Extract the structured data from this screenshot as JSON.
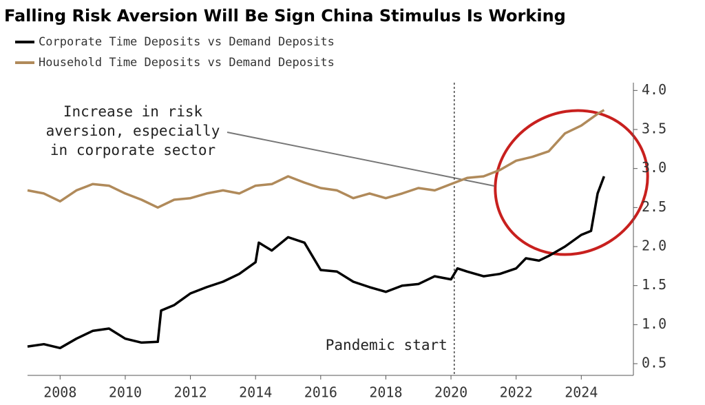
{
  "chart_data": {
    "type": "line",
    "title": "Falling Risk Aversion Will Be Sign China Stimulus Is Working",
    "series": [
      {
        "name": "Corporate Time Deposits vs Demand Deposits",
        "color": "#000000",
        "x": [
          2007,
          2007.5,
          2008,
          2008.5,
          2009,
          2009.5,
          2010,
          2010.5,
          2011,
          2011.1,
          2011.5,
          2012,
          2012.5,
          2013,
          2013.5,
          2014,
          2014.1,
          2014.5,
          2015,
          2015.5,
          2016,
          2016.5,
          2017,
          2017.5,
          2018,
          2018.5,
          2019,
          2019.5,
          2020,
          2020.2,
          2020.5,
          2021,
          2021.5,
          2022,
          2022.3,
          2022.7,
          2023,
          2023.5,
          2024,
          2024.3,
          2024.5,
          2024.7
        ],
        "values": [
          0.72,
          0.75,
          0.7,
          0.82,
          0.92,
          0.95,
          0.82,
          0.77,
          0.78,
          1.18,
          1.25,
          1.4,
          1.48,
          1.55,
          1.65,
          1.8,
          2.05,
          1.95,
          2.12,
          2.05,
          1.7,
          1.68,
          1.55,
          1.48,
          1.42,
          1.5,
          1.52,
          1.62,
          1.58,
          1.72,
          1.68,
          1.62,
          1.65,
          1.72,
          1.85,
          1.82,
          1.88,
          2.0,
          2.15,
          2.2,
          2.68,
          2.9
        ]
      },
      {
        "name": "Household Time Deposits vs Demand Deposits",
        "color": "#b08a5a",
        "x": [
          2007,
          2007.5,
          2008,
          2008.5,
          2009,
          2009.5,
          2010,
          2010.5,
          2011,
          2011.5,
          2012,
          2012.5,
          2013,
          2013.5,
          2014,
          2014.5,
          2015,
          2015.5,
          2016,
          2016.5,
          2017,
          2017.5,
          2018,
          2018.5,
          2019,
          2019.5,
          2020,
          2020.5,
          2021,
          2021.5,
          2022,
          2022.5,
          2023,
          2023.5,
          2024,
          2024.5,
          2024.7
        ],
        "values": [
          2.72,
          2.68,
          2.58,
          2.72,
          2.8,
          2.78,
          2.68,
          2.6,
          2.5,
          2.6,
          2.62,
          2.68,
          2.72,
          2.68,
          2.78,
          2.8,
          2.9,
          2.82,
          2.75,
          2.72,
          2.62,
          2.68,
          2.62,
          2.68,
          2.75,
          2.72,
          2.8,
          2.88,
          2.9,
          2.98,
          3.1,
          3.15,
          3.22,
          3.45,
          3.55,
          3.7,
          3.75
        ]
      }
    ],
    "xlim": [
      2007,
      2025.6
    ],
    "xticks": [
      2008,
      2010,
      2012,
      2014,
      2016,
      2018,
      2020,
      2022,
      2024
    ],
    "ylim": [
      0.35,
      4.1
    ],
    "yticks": [
      {
        "value": 0.5,
        "label": "0.5"
      },
      {
        "value": 1.0,
        "label": "1.0"
      },
      {
        "value": 1.5,
        "label": "1.5"
      },
      {
        "value": 2.0,
        "label": "2.0"
      },
      {
        "value": 2.5,
        "label": "2.5"
      },
      {
        "value": 3.0,
        "label": "3.0"
      },
      {
        "value": 3.5,
        "label": "3.5"
      },
      {
        "value": 4.0,
        "label": "4.0"
      }
    ],
    "annotations": [
      {
        "lines": [
          "Increase in risk",
          "aversion, especially",
          "in corporate sector"
        ]
      },
      {
        "text": "Pandemic start",
        "x": 2020.1
      }
    ]
  }
}
